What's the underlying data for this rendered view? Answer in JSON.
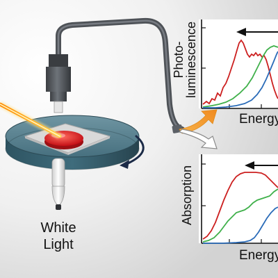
{
  "light_source": {
    "line1": "White",
    "line2": "Light"
  },
  "pl_panel": {
    "ylabel_line1": "Photo-",
    "ylabel_line2": "luminescence",
    "xlabel": "Energy",
    "series_colors": [
      "#cc1f1f",
      "#3fb04a",
      "#2a6bb8"
    ],
    "arrow_direction": "left"
  },
  "abs_panel": {
    "ylabel": "Absorption",
    "xlabel": "Energy",
    "series_colors": [
      "#cc1f1f",
      "#3fb04a",
      "#2a6bb8"
    ],
    "arrow_direction": "left"
  },
  "colors": {
    "laser": "#f5a300",
    "sample_spot": "#d8151d",
    "stage": "#3f6c7c",
    "fiber": "#5b5f65",
    "rotation_arrow": "#1b2a46",
    "pl_arrow": "#f2a33c"
  }
}
